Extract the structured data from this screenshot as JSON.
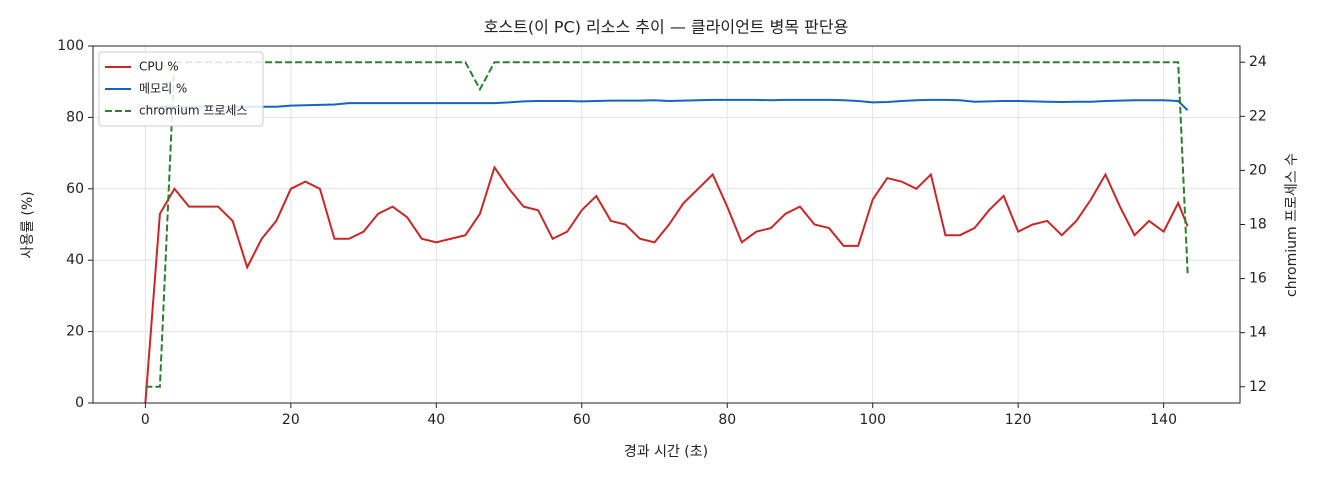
{
  "chart_data": {
    "type": "line",
    "title": "호스트(이 PC) 리소스 추이 — 클라이언트 병목 판단용",
    "x_label": "경과 시간 (초)",
    "y_label": "사용률 (%)",
    "y2_label": "chromium 프로세스 수",
    "x": [
      0,
      2,
      4,
      6,
      8,
      10,
      12,
      14,
      16,
      18,
      20,
      22,
      24,
      26,
      28,
      30,
      32,
      34,
      36,
      38,
      40,
      42,
      44,
      46,
      48,
      50,
      52,
      54,
      56,
      58,
      60,
      62,
      64,
      66,
      68,
      70,
      72,
      74,
      76,
      78,
      80,
      82,
      84,
      86,
      88,
      90,
      92,
      94,
      96,
      98,
      100,
      102,
      104,
      106,
      108,
      110,
      112,
      114,
      116,
      118,
      120,
      122,
      124,
      126,
      128,
      130,
      132,
      134,
      136,
      138,
      140,
      142,
      143.3
    ],
    "series": [
      {
        "name": "CPU %",
        "color": "#c62828",
        "dash": false,
        "values": [
          0,
          53,
          60,
          55,
          55,
          55,
          51,
          38,
          46,
          51,
          60,
          62,
          60,
          46,
          46,
          48,
          53,
          55,
          52,
          46,
          45,
          46,
          47,
          53,
          66,
          60,
          55,
          54,
          46,
          48,
          54,
          58,
          51,
          50,
          46,
          45,
          50,
          56,
          60,
          64,
          55,
          45,
          48,
          49,
          53,
          55,
          50,
          49,
          44,
          44,
          57,
          63,
          62,
          60,
          64,
          47,
          47,
          49,
          54,
          58,
          48,
          50,
          51,
          47,
          51,
          57,
          64,
          55,
          47,
          51,
          48,
          56,
          49.5
        ]
      },
      {
        "name": "메모리 %",
        "color": "#1565c0",
        "dash": false,
        "values": [
          82.5,
          83,
          83,
          83,
          83,
          83,
          83,
          83,
          83,
          83,
          83.3,
          83.4,
          83.5,
          83.6,
          84,
          84,
          84,
          84,
          84,
          84,
          84,
          84,
          84,
          84,
          84,
          84.2,
          84.5,
          84.6,
          84.6,
          84.6,
          84.5,
          84.6,
          84.7,
          84.7,
          84.7,
          84.8,
          84.6,
          84.7,
          84.8,
          84.9,
          84.9,
          84.9,
          84.9,
          84.8,
          84.9,
          84.9,
          84.9,
          84.9,
          84.8,
          84.6,
          84.2,
          84.3,
          84.6,
          84.8,
          84.9,
          84.9,
          84.8,
          84.4,
          84.5,
          84.6,
          84.6,
          84.5,
          84.4,
          84.3,
          84.4,
          84.4,
          84.6,
          84.7,
          84.8,
          84.8,
          84.8,
          84.6,
          82
        ]
      },
      {
        "name": "chromium 프로세스",
        "color": "#2e7d32",
        "dash": true,
        "axis": "y2",
        "values": [
          12,
          12,
          24,
          24,
          24,
          24,
          24,
          24,
          24,
          24,
          24,
          24,
          24,
          24,
          24,
          24,
          24,
          24,
          24,
          24,
          24,
          24,
          24,
          23,
          24,
          24,
          24,
          24,
          24,
          24,
          24,
          24,
          24,
          24,
          24,
          24,
          24,
          24,
          24,
          24,
          24,
          24,
          24,
          24,
          24,
          24,
          24,
          24,
          24,
          24,
          24,
          24,
          24,
          24,
          24,
          24,
          24,
          24,
          24,
          24,
          24,
          24,
          24,
          24,
          24,
          24,
          24,
          24,
          24,
          24,
          24,
          24,
          16.2
        ]
      }
    ],
    "xlim": [
      -7.2,
      150.5
    ],
    "xticks": [
      0,
      20,
      40,
      60,
      80,
      100,
      120,
      140
    ],
    "ylim": [
      0,
      100
    ],
    "yticks": [
      0,
      20,
      40,
      60,
      80,
      100
    ],
    "y2lim": [
      11.4,
      24.6
    ],
    "y2ticks": [
      12,
      14,
      16,
      18,
      20,
      22,
      24
    ],
    "grid": true,
    "legend": "upper left"
  }
}
